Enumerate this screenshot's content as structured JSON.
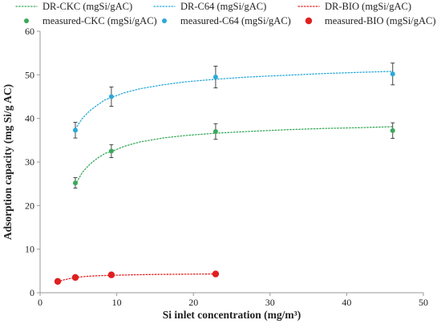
{
  "chart_data": {
    "type": "scatter",
    "xlabel": "Si inlet concentration (mg/m³)",
    "ylabel": "Adsorption capacity (mg Si/g AC)",
    "xlim": [
      0,
      50
    ],
    "ylim": [
      0,
      60
    ],
    "xticks": [
      0,
      10,
      20,
      30,
      40,
      50
    ],
    "yticks": [
      0,
      10,
      20,
      30,
      40,
      50,
      60
    ],
    "grid": false,
    "legend_position": "top",
    "legend": [
      "DR-CKC (mgSi/gAC)",
      "DR-C64 (mgSi/gAC)",
      "DR-BIO (mgSi/gAC)",
      "measured-CKC (mgSi/gAC)",
      "measured-C64 (mgSi/gAC)",
      "measured-BIO (mgSi/gAC)"
    ],
    "series": [
      {
        "name": "DR-CKC (mgSi/gAC)",
        "kind": "line",
        "style": "dotted",
        "color": "#3aa85a",
        "x": [
          4.6,
          5.5,
          6.5,
          7.5,
          8.5,
          9.3,
          11,
          13,
          16,
          19,
          22.9,
          27,
          32,
          37,
          42,
          46
        ],
        "y": [
          24.8,
          27.6,
          29.5,
          30.9,
          32.0,
          32.4,
          33.6,
          34.6,
          35.5,
          36.1,
          36.6,
          37.0,
          37.4,
          37.7,
          37.9,
          38.1
        ]
      },
      {
        "name": "DR-C64 (mgSi/gAC)",
        "kind": "line",
        "style": "dotted",
        "color": "#2aa9d8",
        "x": [
          4.6,
          5.5,
          6.5,
          7.5,
          8.5,
          9.3,
          11,
          13,
          16,
          19,
          22.9,
          27,
          32,
          37,
          42,
          46
        ],
        "y": [
          37.6,
          40.0,
          41.8,
          43.1,
          44.3,
          44.8,
          45.9,
          46.8,
          47.7,
          48.4,
          49.0,
          49.5,
          49.9,
          50.3,
          50.6,
          50.8
        ]
      },
      {
        "name": "DR-BIO (mgSi/gAC)",
        "kind": "line",
        "style": "dotted",
        "color": "#e02020",
        "x": [
          2.3,
          3.0,
          4.0,
          4.6,
          6,
          7.5,
          9.3,
          12,
          15,
          19,
          22.9
        ],
        "y": [
          2.5,
          2.9,
          3.3,
          3.5,
          3.75,
          3.9,
          4.0,
          4.1,
          4.2,
          4.25,
          4.3
        ]
      },
      {
        "name": "measured-CKC (mgSi/gAC)",
        "kind": "scatter",
        "color": "#3aa85a",
        "x": [
          4.6,
          9.3,
          22.9,
          46
        ],
        "y": [
          25.2,
          32.5,
          37.0,
          37.2
        ],
        "err": [
          1.2,
          1.5,
          1.8,
          1.8
        ]
      },
      {
        "name": "measured-C64 (mgSi/gAC)",
        "kind": "scatter",
        "color": "#2aa9d8",
        "x": [
          4.6,
          9.3,
          22.9,
          46
        ],
        "y": [
          37.3,
          45.0,
          49.5,
          50.2
        ],
        "err": [
          1.8,
          2.2,
          2.5,
          2.5
        ]
      },
      {
        "name": "measured-BIO (mgSi/gAC)",
        "kind": "scatter",
        "color": "#e02020",
        "x": [
          2.3,
          4.6,
          9.3,
          22.9
        ],
        "y": [
          2.6,
          3.5,
          4.1,
          4.3
        ],
        "err": [
          0,
          0,
          0,
          0
        ]
      }
    ]
  }
}
